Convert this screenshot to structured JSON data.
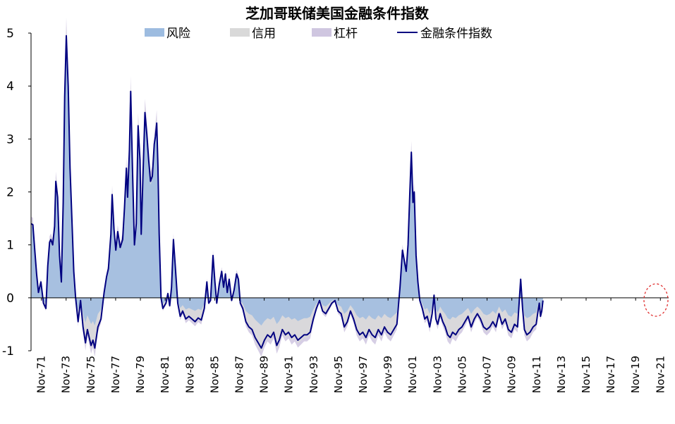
{
  "chart_data": {
    "type": "area",
    "title": "芝加哥联储美国金融条件指数",
    "xlabel": "",
    "ylabel": "",
    "ylim": [
      -1,
      5
    ],
    "yticks": [
      "5",
      "4",
      "3",
      "2",
      "1",
      "0",
      "-1"
    ],
    "xlim": [
      1971.0,
      2022.5
    ],
    "xtick_labels": [
      "Nov-71",
      "Nov-73",
      "Nov-75",
      "Nov-77",
      "Nov-79",
      "Nov-81",
      "Nov-83",
      "Nov-85",
      "Nov-87",
      "Nov-89",
      "Nov-91",
      "Nov-93",
      "Nov-95",
      "Nov-97",
      "Nov-99",
      "Nov-01",
      "Nov-03",
      "Nov-05",
      "Nov-07",
      "Nov-09",
      "Nov-11",
      "Nov-13",
      "Nov-15",
      "Nov-17",
      "Nov-19",
      "Nov-21"
    ],
    "legend_position": "top",
    "grid": false,
    "series": [
      {
        "name": "风险",
        "kind": "area",
        "color": "#9DBCE0"
      },
      {
        "name": "信用",
        "kind": "area",
        "color": "#D9D9D9"
      },
      {
        "name": "杠杆",
        "kind": "area",
        "color": "#CFC6E0"
      },
      {
        "name": "金融条件指数",
        "kind": "line",
        "color": "#000080",
        "points": [
          [
            1971.0,
            1.4
          ],
          [
            1971.15,
            1.38
          ],
          [
            1971.3,
            0.9
          ],
          [
            1971.45,
            0.45
          ],
          [
            1971.6,
            0.1
          ],
          [
            1971.8,
            0.3
          ],
          [
            1972.0,
            -0.1
          ],
          [
            1972.2,
            -0.2
          ],
          [
            1972.35,
            0.6
          ],
          [
            1972.5,
            1.05
          ],
          [
            1972.6,
            1.1
          ],
          [
            1972.75,
            1.0
          ],
          [
            1972.9,
            1.35
          ],
          [
            1973.0,
            2.2
          ],
          [
            1973.15,
            1.9
          ],
          [
            1973.3,
            0.8
          ],
          [
            1973.45,
            0.3
          ],
          [
            1973.6,
            1.8
          ],
          [
            1973.72,
            3.8
          ],
          [
            1973.85,
            4.95
          ],
          [
            1974.0,
            4.0
          ],
          [
            1974.15,
            2.45
          ],
          [
            1974.3,
            1.5
          ],
          [
            1974.45,
            0.5
          ],
          [
            1974.6,
            0.0
          ],
          [
            1974.8,
            -0.45
          ],
          [
            1975.0,
            -0.05
          ],
          [
            1975.2,
            -0.55
          ],
          [
            1975.4,
            -0.85
          ],
          [
            1975.55,
            -0.6
          ],
          [
            1975.7,
            -0.75
          ],
          [
            1975.85,
            -0.9
          ],
          [
            1976.0,
            -0.8
          ],
          [
            1976.15,
            -0.95
          ],
          [
            1976.4,
            -0.55
          ],
          [
            1976.65,
            -0.4
          ],
          [
            1976.9,
            0.1
          ],
          [
            1977.1,
            0.4
          ],
          [
            1977.25,
            0.55
          ],
          [
            1977.45,
            1.2
          ],
          [
            1977.55,
            1.95
          ],
          [
            1977.7,
            1.3
          ],
          [
            1977.85,
            0.9
          ],
          [
            1978.0,
            1.25
          ],
          [
            1978.2,
            0.95
          ],
          [
            1978.4,
            1.1
          ],
          [
            1978.55,
            1.7
          ],
          [
            1978.7,
            2.45
          ],
          [
            1978.8,
            1.9
          ],
          [
            1978.95,
            2.8
          ],
          [
            1979.05,
            3.9
          ],
          [
            1979.2,
            2.4
          ],
          [
            1979.35,
            1.0
          ],
          [
            1979.5,
            1.4
          ],
          [
            1979.65,
            3.25
          ],
          [
            1979.8,
            2.6
          ],
          [
            1979.9,
            1.2
          ],
          [
            1980.05,
            2.4
          ],
          [
            1980.2,
            3.5
          ],
          [
            1980.35,
            3.1
          ],
          [
            1980.5,
            2.6
          ],
          [
            1980.65,
            2.2
          ],
          [
            1980.8,
            2.3
          ],
          [
            1980.95,
            2.9
          ],
          [
            1981.05,
            3.05
          ],
          [
            1981.15,
            3.3
          ],
          [
            1981.25,
            2.5
          ],
          [
            1981.35,
            1.2
          ],
          [
            1981.5,
            0.0
          ],
          [
            1981.65,
            -0.2
          ],
          [
            1981.9,
            -0.1
          ],
          [
            1982.05,
            0.08
          ],
          [
            1982.2,
            -0.15
          ],
          [
            1982.35,
            0.2
          ],
          [
            1982.5,
            1.1
          ],
          [
            1982.65,
            0.6
          ],
          [
            1982.85,
            -0.1
          ],
          [
            1983.05,
            -0.35
          ],
          [
            1983.25,
            -0.25
          ],
          [
            1983.5,
            -0.4
          ],
          [
            1983.75,
            -0.35
          ],
          [
            1984.0,
            -0.4
          ],
          [
            1984.25,
            -0.45
          ],
          [
            1984.5,
            -0.38
          ],
          [
            1984.75,
            -0.42
          ],
          [
            1985.0,
            -0.2
          ],
          [
            1985.2,
            0.3
          ],
          [
            1985.35,
            -0.1
          ],
          [
            1985.5,
            -0.05
          ],
          [
            1985.7,
            0.8
          ],
          [
            1985.85,
            0.3
          ],
          [
            1986.0,
            -0.1
          ],
          [
            1986.2,
            0.25
          ],
          [
            1986.4,
            0.5
          ],
          [
            1986.55,
            0.2
          ],
          [
            1986.7,
            0.45
          ],
          [
            1986.85,
            0.1
          ],
          [
            1987.0,
            0.35
          ],
          [
            1987.2,
            -0.05
          ],
          [
            1987.4,
            0.15
          ],
          [
            1987.6,
            0.45
          ],
          [
            1987.75,
            0.35
          ],
          [
            1987.9,
            -0.1
          ],
          [
            1988.1,
            -0.2
          ],
          [
            1988.35,
            -0.45
          ],
          [
            1988.6,
            -0.55
          ],
          [
            1988.85,
            -0.6
          ],
          [
            1989.1,
            -0.75
          ],
          [
            1989.35,
            -0.85
          ],
          [
            1989.6,
            -0.95
          ],
          [
            1989.85,
            -0.8
          ],
          [
            1990.1,
            -0.7
          ],
          [
            1990.35,
            -0.75
          ],
          [
            1990.6,
            -0.65
          ],
          [
            1990.85,
            -0.9
          ],
          [
            1991.05,
            -0.8
          ],
          [
            1991.3,
            -0.6
          ],
          [
            1991.55,
            -0.7
          ],
          [
            1991.8,
            -0.65
          ],
          [
            1992.05,
            -0.75
          ],
          [
            1992.3,
            -0.7
          ],
          [
            1992.55,
            -0.8
          ],
          [
            1992.8,
            -0.75
          ],
          [
            1993.05,
            -0.7
          ],
          [
            1993.3,
            -0.7
          ],
          [
            1993.55,
            -0.65
          ],
          [
            1993.8,
            -0.4
          ],
          [
            1994.05,
            -0.2
          ],
          [
            1994.3,
            -0.05
          ],
          [
            1994.55,
            -0.25
          ],
          [
            1994.8,
            -0.3
          ],
          [
            1995.05,
            -0.2
          ],
          [
            1995.3,
            -0.1
          ],
          [
            1995.55,
            -0.05
          ],
          [
            1995.8,
            -0.25
          ],
          [
            1996.05,
            -0.3
          ],
          [
            1996.3,
            -0.55
          ],
          [
            1996.55,
            -0.45
          ],
          [
            1996.8,
            -0.25
          ],
          [
            1997.05,
            -0.4
          ],
          [
            1997.3,
            -0.6
          ],
          [
            1997.55,
            -0.7
          ],
          [
            1997.8,
            -0.65
          ],
          [
            1998.05,
            -0.75
          ],
          [
            1998.3,
            -0.6
          ],
          [
            1998.55,
            -0.7
          ],
          [
            1998.8,
            -0.75
          ],
          [
            1999.05,
            -0.6
          ],
          [
            1999.3,
            -0.7
          ],
          [
            1999.55,
            -0.55
          ],
          [
            1999.8,
            -0.65
          ],
          [
            2000.05,
            -0.7
          ],
          [
            2000.3,
            -0.6
          ],
          [
            2000.55,
            -0.5
          ],
          [
            2000.8,
            0.2
          ],
          [
            2001.0,
            0.9
          ],
          [
            2001.15,
            0.7
          ],
          [
            2001.3,
            0.5
          ],
          [
            2001.45,
            1.0
          ],
          [
            2001.6,
            2.0
          ],
          [
            2001.72,
            2.75
          ],
          [
            2001.85,
            1.8
          ],
          [
            2001.95,
            2.0
          ],
          [
            2002.1,
            0.8
          ],
          [
            2002.25,
            0.3
          ],
          [
            2002.4,
            -0.05
          ],
          [
            2002.6,
            -0.2
          ],
          [
            2002.8,
            -0.4
          ],
          [
            2003.0,
            -0.35
          ],
          [
            2003.2,
            -0.55
          ],
          [
            2003.4,
            -0.3
          ],
          [
            2003.55,
            0.05
          ],
          [
            2003.7,
            -0.4
          ],
          [
            2003.85,
            -0.5
          ],
          [
            2004.05,
            -0.3
          ],
          [
            2004.25,
            -0.45
          ],
          [
            2004.45,
            -0.55
          ],
          [
            2004.65,
            -0.7
          ],
          [
            2004.85,
            -0.75
          ],
          [
            2005.05,
            -0.65
          ],
          [
            2005.3,
            -0.7
          ],
          [
            2005.55,
            -0.6
          ],
          [
            2005.8,
            -0.55
          ],
          [
            2006.05,
            -0.45
          ],
          [
            2006.3,
            -0.35
          ],
          [
            2006.55,
            -0.55
          ],
          [
            2006.8,
            -0.4
          ],
          [
            2007.05,
            -0.3
          ],
          [
            2007.3,
            -0.4
          ],
          [
            2007.55,
            -0.55
          ],
          [
            2007.8,
            -0.6
          ],
          [
            2008.05,
            -0.55
          ],
          [
            2008.3,
            -0.45
          ],
          [
            2008.55,
            -0.55
          ],
          [
            2008.8,
            -0.3
          ],
          [
            2009.05,
            -0.5
          ],
          [
            2009.3,
            -0.4
          ],
          [
            2009.55,
            -0.6
          ],
          [
            2009.8,
            -0.65
          ],
          [
            2010.05,
            -0.5
          ],
          [
            2010.3,
            -0.55
          ],
          [
            2010.55,
            0.35
          ],
          [
            2010.7,
            -0.2
          ],
          [
            2010.85,
            -0.6
          ],
          [
            2011.05,
            -0.7
          ],
          [
            2011.3,
            -0.65
          ],
          [
            2011.55,
            -0.55
          ],
          [
            2011.8,
            -0.5
          ],
          [
            2011.95,
            -0.25
          ],
          [
            2012.05,
            -0.1
          ],
          [
            2012.15,
            -0.35
          ],
          [
            2012.25,
            -0.25
          ],
          [
            2012.35,
            -0.05
          ]
        ]
      }
    ]
  }
}
